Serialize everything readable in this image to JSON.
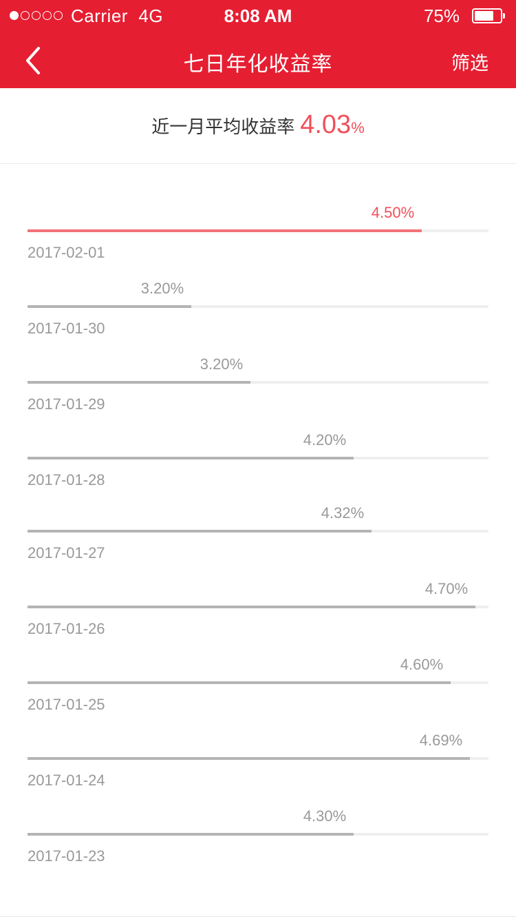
{
  "status_bar": {
    "signal_dots": 5,
    "signal_filled": 1,
    "carrier": "Carrier",
    "network": "4G",
    "time": "8:08 AM",
    "battery_percent": "75%",
    "battery_level": 0.75
  },
  "nav": {
    "back_icon": "chevron-left-icon",
    "title": "七日年化收益率",
    "filter_label": "筛选"
  },
  "summary": {
    "label": "近一月平均收益率",
    "value": "4.03",
    "unit": "%"
  },
  "colors": {
    "brand_red": "#e61e32",
    "highlight_red": "#f0505a",
    "bar_gray": "#b4b4b4"
  },
  "rates": [
    {
      "date": "2017-02-01",
      "rate": "4.50%",
      "value": 4.5,
      "fill": 0.855,
      "highlight": true
    },
    {
      "date": "2017-01-30",
      "rate": "3.20%",
      "value": 3.2,
      "fill": 0.355,
      "highlight": false
    },
    {
      "date": "2017-01-29",
      "rate": "3.20%",
      "value": 3.2,
      "fill": 0.484,
      "highlight": false
    },
    {
      "date": "2017-01-28",
      "rate": "4.20%",
      "value": 4.2,
      "fill": 0.707,
      "highlight": false
    },
    {
      "date": "2017-01-27",
      "rate": "4.32%",
      "value": 4.32,
      "fill": 0.746,
      "highlight": false
    },
    {
      "date": "2017-01-26",
      "rate": "4.70%",
      "value": 4.7,
      "fill": 0.972,
      "highlight": false
    },
    {
      "date": "2017-01-25",
      "rate": "4.60%",
      "value": 4.6,
      "fill": 0.918,
      "highlight": false
    },
    {
      "date": "2017-01-24",
      "rate": "4.69%",
      "value": 4.69,
      "fill": 0.96,
      "highlight": false
    },
    {
      "date": "2017-01-23",
      "rate": "4.30%",
      "value": 4.3,
      "fill": 0.707,
      "highlight": false
    }
  ]
}
